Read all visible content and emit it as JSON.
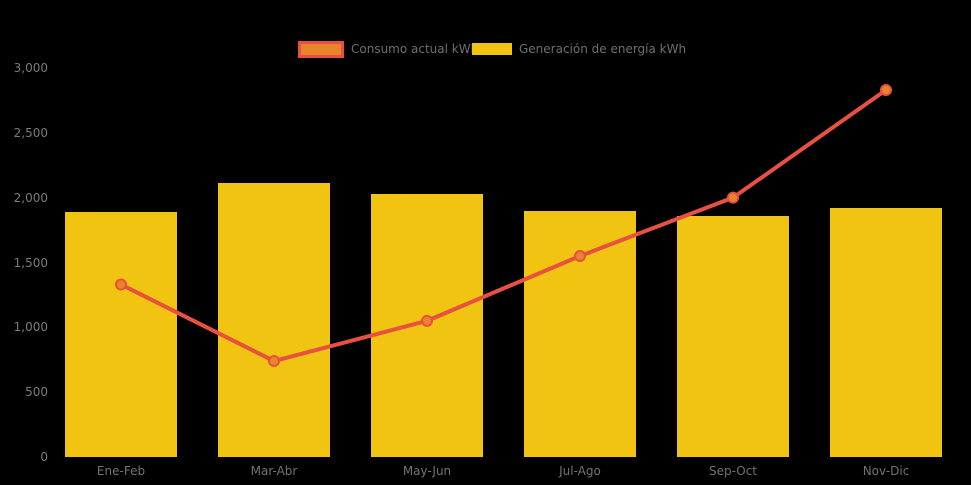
{
  "app": {
    "background": "#000000"
  },
  "legend": {
    "position": "top",
    "items": [
      {
        "label": "Consumo actual kWh",
        "swatch_fill": "#E8832E",
        "swatch_border": "#E8513F"
      },
      {
        "label": "Generación de energía kWh",
        "swatch_fill": "#F2C412",
        "swatch_border": ""
      }
    ]
  },
  "chart_data": {
    "type": "bar+line",
    "title": "",
    "xlabel": "",
    "ylabel": "",
    "categories": [
      "Ene-Feb",
      "Mar-Abr",
      "May-Jun",
      "Jul-Ago",
      "Sep-Oct",
      "Nov-Dic"
    ],
    "series": [
      {
        "name": "Consumo actual kWh",
        "type": "line",
        "color": "#E8513F",
        "marker_fill": "#E8832E",
        "values": [
          1330,
          740,
          1050,
          1550,
          2000,
          2830
        ]
      },
      {
        "name": "Generación de energía kWh",
        "type": "bar",
        "color": "#F2C412",
        "values": [
          1890,
          2110,
          2030,
          1900,
          1860,
          1920
        ]
      }
    ],
    "ylim": [
      0,
      3000
    ],
    "yticks": [
      0,
      500,
      1000,
      1500,
      2000,
      2500,
      3000
    ],
    "ytick_labels": [
      "0",
      "500",
      "1,000",
      "1,500",
      "2,000",
      "2,500",
      "3,000"
    ],
    "grid": false,
    "axis_lines": false,
    "legend_position": "top",
    "tick_text_color": "#7A7A7A",
    "legend_text_color": "#6F6F6F"
  }
}
